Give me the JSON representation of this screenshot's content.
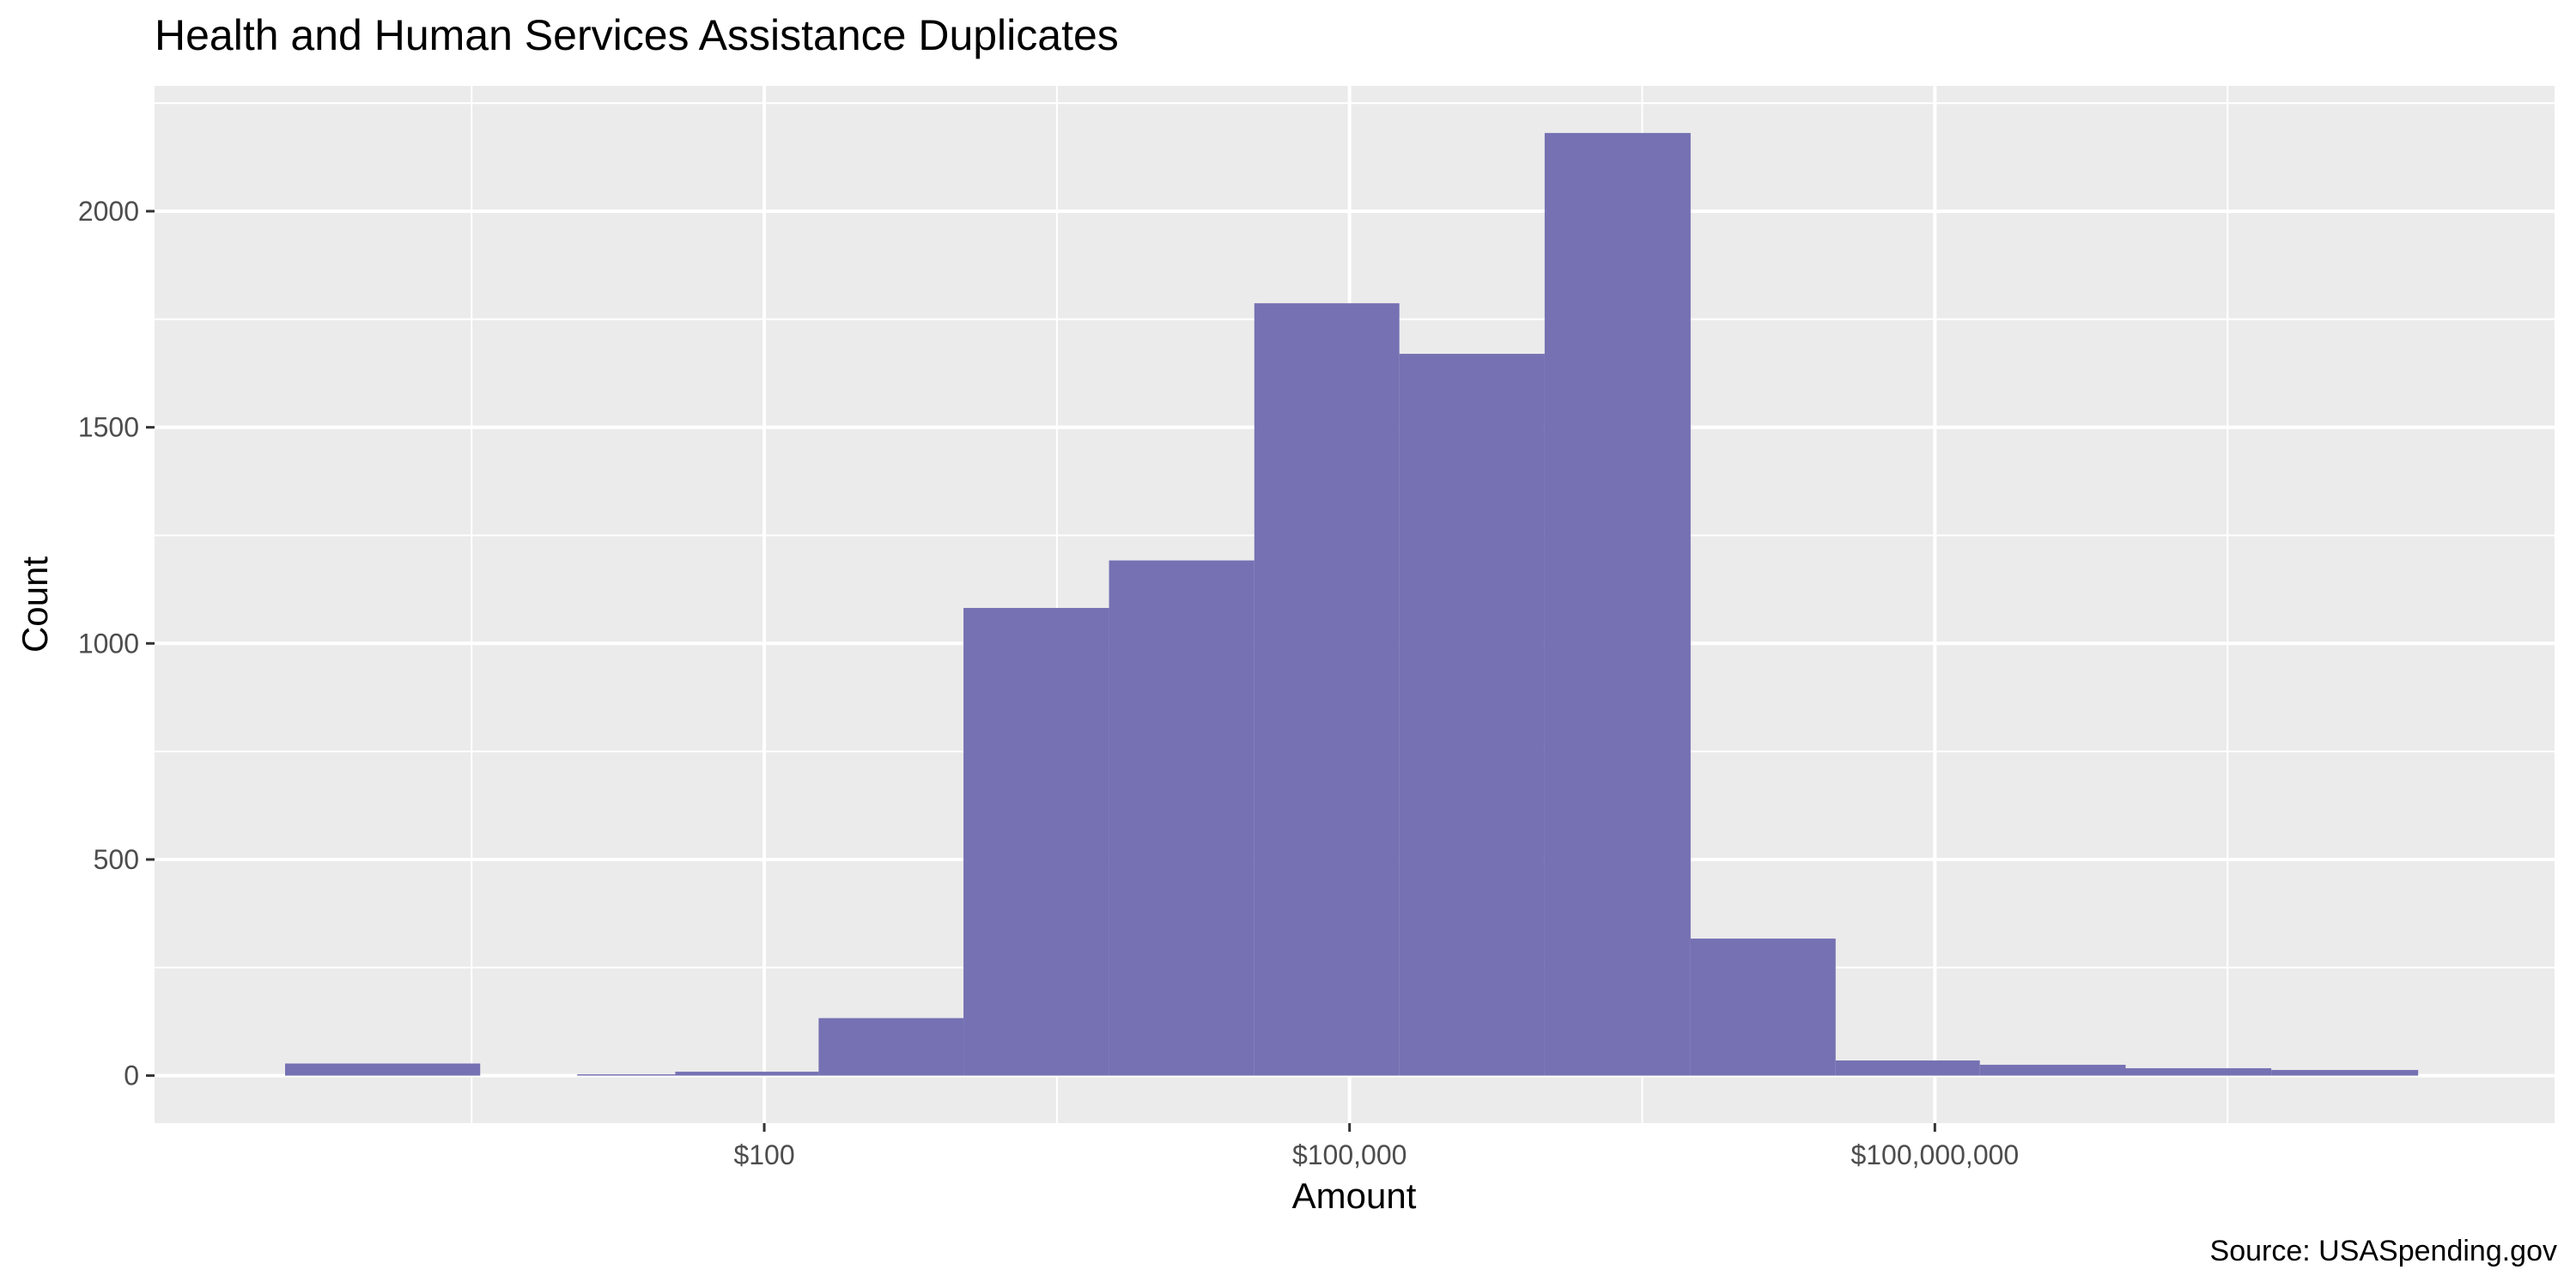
{
  "chart_data": {
    "type": "bar",
    "title": "Health and Human Services Assistance Duplicates",
    "xlabel": "Amount",
    "ylabel": "Count",
    "caption": "Source: USASpending.gov",
    "x_scale": "log10",
    "x_ticks": [
      {
        "value": 100,
        "label": "$100"
      },
      {
        "value": 100000,
        "label": "$100,000"
      },
      {
        "value": 100000000,
        "label": "$100,000,000"
      }
    ],
    "y_ticks": [
      {
        "value": 0,
        "label": "0"
      },
      {
        "value": 500,
        "label": "500"
      },
      {
        "value": 1000,
        "label": "1000"
      },
      {
        "value": 1500,
        "label": "1500"
      },
      {
        "value": 2000,
        "label": "2000"
      }
    ],
    "xlim": [
      0.075,
      150000000000
    ],
    "ylim": [
      -110,
      2290
    ],
    "bins": [
      {
        "x_min": 0.35,
        "x_max": 3.5,
        "count": 28
      },
      {
        "x_min": 11,
        "x_max": 35,
        "count": 3
      },
      {
        "x_min": 35,
        "x_max": 190,
        "count": 9
      },
      {
        "x_min": 190,
        "x_max": 1050,
        "count": 133
      },
      {
        "x_min": 1050,
        "x_max": 5850,
        "count": 1082
      },
      {
        "x_min": 5850,
        "x_max": 32500,
        "count": 1192
      },
      {
        "x_min": 32500,
        "x_max": 180000,
        "count": 1787
      },
      {
        "x_min": 180000,
        "x_max": 1000000,
        "count": 1670
      },
      {
        "x_min": 1000000,
        "x_max": 5600000,
        "count": 2181
      },
      {
        "x_min": 5600000,
        "x_max": 31000000,
        "count": 317
      },
      {
        "x_min": 31000000,
        "x_max": 170000000,
        "count": 35
      },
      {
        "x_min": 170000000,
        "x_max": 950000000,
        "count": 25
      },
      {
        "x_min": 950000000,
        "x_max": 5300000000,
        "count": 17
      },
      {
        "x_min": 5300000000,
        "x_max": 30000000000,
        "count": 13
      }
    ],
    "colors": {
      "bar": "#7671b3",
      "panel": "#ebebeb",
      "grid": "#ffffff"
    },
    "legend": "none",
    "grid": true
  }
}
